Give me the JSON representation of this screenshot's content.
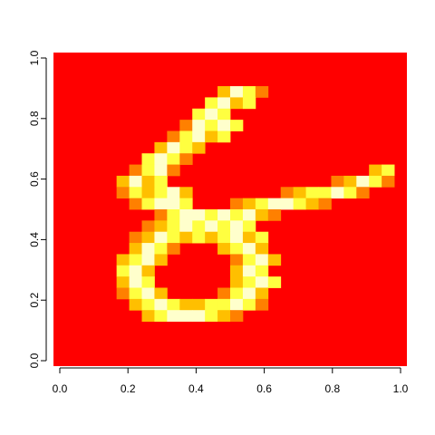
{
  "chart_data": {
    "type": "heatmap",
    "title": "",
    "xlabel": "",
    "ylabel": "",
    "xlim": [
      0,
      1
    ],
    "ylim": [
      0,
      1
    ],
    "grid": false,
    "legend": false,
    "x_ticks": [
      "0.0",
      "0.2",
      "0.4",
      "0.6",
      "0.8",
      "1.0"
    ],
    "y_ticks": [
      "0.0",
      "0.2",
      "0.4",
      "0.6",
      "0.8",
      "1.0"
    ],
    "rows": 28,
    "cols": 28,
    "row_order": "top-to-bottom",
    "legend_scale": "0 = red (background), 1 = dark orange, 2 = orange, 3 = yellow, 4 = light yellow, 5 = pale yellow/white",
    "palette": [
      "#ff0000",
      "#ff4000",
      "#ff8000",
      "#ffbf00",
      "#ffff40",
      "#ffffcc"
    ],
    "cells": [
      "0000000000000000000000000000",
      "0000000000000000000000000000",
      "0000000000000000000000000000",
      "0000000000000000000000000000",
      "0000000000000000000000000000",
      "0000000000000000000000000000",
      "0000000000000000000000000000",
      "0000000000000000000000000000",
      "0000000000000000000000000000",
      "0000000000000000000000000000",
      "0000000000000000000000000000",
      "0000000000000000000000000000",
      "0000000000000000000000000000",
      "0000000000000000000000000000",
      "0000000000000000000000000000",
      "0000000000000000000000000000",
      "0000000000000000000000000000",
      "0000000000000000000000000000",
      "0000000000000000000000000000",
      "0000000000000000000000000000",
      "0000000000000000000000000000",
      "0000000000000000000000000000",
      "0000000000000000000000000000",
      "0000000000000000000000000000",
      "0000000000000000000000000000",
      "0000000000000000000000000000",
      "0000000000000000000000000000",
      "0000000000000000000000000000"
    ],
    "strokes": [
      {
        "row": 3,
        "cells": {
          "13": 3,
          "14": 5,
          "15": 4,
          "16": 2
        }
      },
      {
        "row": 4,
        "cells": {
          "12": 4,
          "13": 5,
          "14": 3,
          "15": 4
        }
      },
      {
        "row": 5,
        "cells": {
          "11": 4,
          "12": 5,
          "13": 4
        }
      },
      {
        "row": 6,
        "cells": {
          "10": 2,
          "11": 5,
          "12": 4,
          "13": 5,
          "14": 4
        }
      },
      {
        "row": 7,
        "cells": {
          "9": 2,
          "10": 4,
          "11": 5,
          "12": 3,
          "13": 4
        }
      },
      {
        "row": 8,
        "cells": {
          "8": 3,
          "9": 5,
          "10": 4,
          "11": 3
        }
      },
      {
        "row": 9,
        "cells": {
          "7": 4,
          "8": 5,
          "9": 4,
          "10": 2
        }
      },
      {
        "row": 10,
        "cells": {
          "6": 2,
          "7": 4,
          "8": 5,
          "9": 2,
          "25": 3,
          "26": 4
        }
      },
      {
        "row": 11,
        "cells": {
          "5": 3,
          "6": 5,
          "7": 3,
          "8": 4,
          "22": 2,
          "23": 3,
          "24": 5,
          "25": 4,
          "26": 2
        }
      },
      {
        "row": 12,
        "cells": {
          "5": 2,
          "6": 4,
          "7": 3,
          "8": 4,
          "9": 5,
          "10": 3,
          "18": 2,
          "19": 3,
          "20": 4,
          "21": 4,
          "22": 5,
          "23": 4,
          "24": 2
        }
      },
      {
        "row": 13,
        "cells": {
          "6": 2,
          "7": 4,
          "8": 5,
          "9": 5,
          "10": 4,
          "14": 2,
          "15": 3,
          "16": 4,
          "17": 5,
          "18": 5,
          "19": 4,
          "20": 3,
          "21": 2
        }
      },
      {
        "row": 14,
        "cells": {
          "8": 2,
          "9": 4,
          "10": 5,
          "11": 5,
          "12": 4,
          "13": 5,
          "14": 4,
          "15": 5,
          "16": 3,
          "17": 2
        }
      },
      {
        "row": 15,
        "cells": {
          "7": 2,
          "8": 3,
          "9": 4,
          "10": 5,
          "11": 4,
          "12": 5,
          "13": 4,
          "14": 5,
          "15": 4
        }
      },
      {
        "row": 16,
        "cells": {
          "6": 2,
          "7": 3,
          "8": 5,
          "9": 4,
          "10": 3,
          "11": 4,
          "12": 3,
          "13": 4,
          "14": 5,
          "15": 3,
          "16": 4
        }
      },
      {
        "row": 17,
        "cells": {
          "6": 3,
          "7": 5,
          "8": 4,
          "9": 2,
          "13": 3,
          "14": 4,
          "15": 5,
          "16": 3
        }
      },
      {
        "row": 18,
        "cells": {
          "5": 3,
          "6": 4,
          "7": 5,
          "8": 3,
          "14": 2,
          "15": 4,
          "16": 5,
          "17": 3
        }
      },
      {
        "row": 19,
        "cells": {
          "5": 4,
          "6": 5,
          "7": 3,
          "14": 3,
          "15": 5,
          "16": 4
        }
      },
      {
        "row": 20,
        "cells": {
          "5": 3,
          "6": 5,
          "7": 4,
          "14": 3,
          "15": 4,
          "16": 5,
          "17": 4
        }
      },
      {
        "row": 21,
        "cells": {
          "5": 2,
          "6": 4,
          "7": 5,
          "8": 3,
          "13": 2,
          "14": 4,
          "15": 5,
          "16": 3
        }
      },
      {
        "row": 22,
        "cells": {
          "6": 3,
          "7": 4,
          "8": 5,
          "9": 4,
          "10": 3,
          "11": 3,
          "12": 4,
          "13": 4,
          "14": 5,
          "15": 4,
          "16": 2
        }
      },
      {
        "row": 23,
        "cells": {
          "7": 3,
          "8": 4,
          "9": 5,
          "10": 5,
          "11": 5,
          "12": 4,
          "13": 3,
          "14": 2
        }
      }
    ]
  }
}
